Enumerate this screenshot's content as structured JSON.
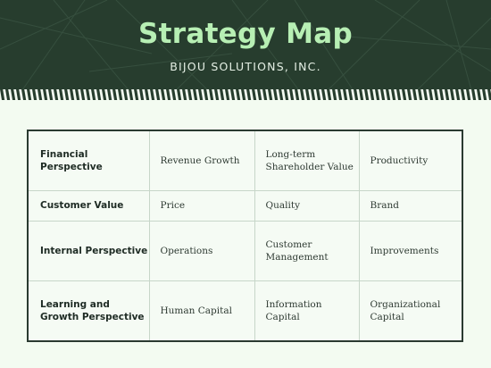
{
  "header": {
    "title": "Strategy Map",
    "subtitle": "BIJOU SOLUTIONS, INC."
  },
  "table": {
    "rows": [
      {
        "label": "Financial Perspective",
        "cells": [
          "Revenue Growth",
          "Long-term Shareholder Value",
          "Productivity"
        ]
      },
      {
        "label": "Customer Value",
        "cells": [
          "Price",
          "Quality",
          "Brand"
        ]
      },
      {
        "label": "Internal Perspective",
        "cells": [
          "Operations",
          "Customer Management",
          "Improvements"
        ]
      },
      {
        "label": "Learning and Growth Perspective",
        "cells": [
          "Human Capital",
          "Information Capital",
          "Organizational Capital"
        ]
      }
    ]
  },
  "colors": {
    "header_bg": "#273d2e",
    "title": "#b7efb4",
    "page_bg": "#f3fbf1"
  }
}
